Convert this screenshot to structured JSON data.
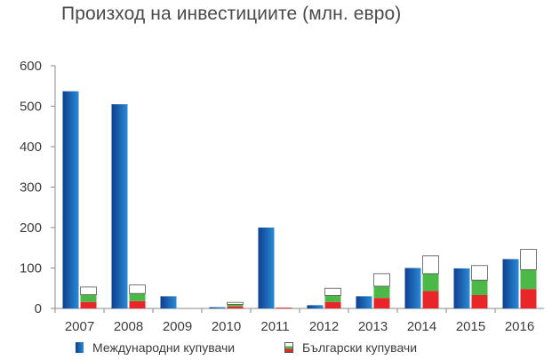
{
  "title": "Произход на инвестициите (млн. евро)",
  "colors": {
    "international_dark": "#0e3f8f",
    "international_light": "#2a8ad6",
    "bulgarian_red": "#e8262a",
    "bulgarian_green": "#4cb848",
    "bulgarian_white": "#ffffff",
    "axis": "#8a8a8a"
  },
  "legend": {
    "international": "Международни купувачи",
    "bulgarian": "Български купувачи"
  },
  "chart_data": {
    "type": "bar",
    "title": "Произход на инвестициите (млн. евро)",
    "xlabel": "",
    "ylabel": "",
    "categories": [
      "2007",
      "2008",
      "2009",
      "2010",
      "2011",
      "2012",
      "2013",
      "2014",
      "2015",
      "2016"
    ],
    "ylim": [
      0,
      600
    ],
    "yticks": [
      0,
      100,
      200,
      300,
      400,
      500,
      600
    ],
    "grid": false,
    "legend_position": "bottom",
    "series": [
      {
        "name": "Международни купувачи",
        "values": [
          537,
          505,
          30,
          3,
          200,
          8,
          30,
          100,
          99,
          122
        ]
      },
      {
        "name": "Български купувачи",
        "stacked": true,
        "values": [
          53,
          58,
          0,
          15,
          2,
          50,
          86,
          130,
          106,
          146
        ],
        "stack_segments": {
          "red": [
            16,
            18,
            0,
            5,
            2,
            16,
            26,
            43,
            33,
            48
          ],
          "green": [
            18,
            19,
            0,
            5,
            0,
            16,
            29,
            43,
            37,
            48
          ],
          "white": [
            19,
            21,
            0,
            5,
            0,
            18,
            31,
            44,
            36,
            50
          ]
        }
      }
    ]
  }
}
